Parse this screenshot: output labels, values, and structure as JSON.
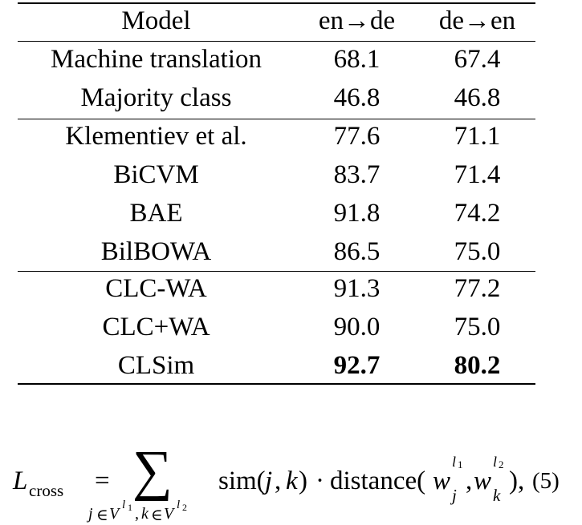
{
  "table": {
    "headers": [
      "Model",
      "en→de",
      "de→en"
    ],
    "groups": [
      [
        {
          "model": "Machine translation",
          "en_de": "68.1",
          "de_en": "67.4"
        },
        {
          "model": "Majority class",
          "en_de": "46.8",
          "de_en": "46.8"
        }
      ],
      [
        {
          "model": "Klementiev et al.",
          "en_de": "77.6",
          "de_en": "71.1"
        },
        {
          "model": "BiCVM",
          "en_de": "83.7",
          "de_en": "71.4"
        },
        {
          "model": "BAE",
          "en_de": "91.8",
          "de_en": "74.2"
        },
        {
          "model": "BilBOWA",
          "en_de": "86.5",
          "de_en": "75.0"
        }
      ],
      [
        {
          "model": "CLC-WA",
          "en_de": "91.3",
          "de_en": "77.2"
        },
        {
          "model": "CLC+WA",
          "en_de": "90.0",
          "de_en": "75.0"
        },
        {
          "model": "CLSim",
          "en_de": "92.7",
          "de_en": "80.2",
          "bold": true
        }
      ]
    ]
  },
  "equation": {
    "lhs_symbol": "L",
    "lhs_subscript": "cross",
    "equals": "=",
    "sum_symbol": "∑",
    "sum_index_j": "j",
    "sum_in": "∈",
    "sum_set": "V",
    "sum_sup_l": "l",
    "sum_sup_1": "1",
    "sum_comma": ",",
    "sum_index_k": "k",
    "sum_sup_2": "2",
    "sim_fn": "sim(",
    "sim_j": "j",
    "sim_comma": ",",
    "sim_k": "k",
    "sim_close": ")",
    "dot": "·",
    "distance_fn": "distance(",
    "w1": "w",
    "w1_sub": "j",
    "w1_sup_l": "l",
    "w1_sup_n": "1",
    "w_comma": ",",
    "w2": "w",
    "w2_sub": "k",
    "w2_sup_l": "l",
    "w2_sup_n": "2",
    "end": "),",
    "number": "(5)"
  }
}
